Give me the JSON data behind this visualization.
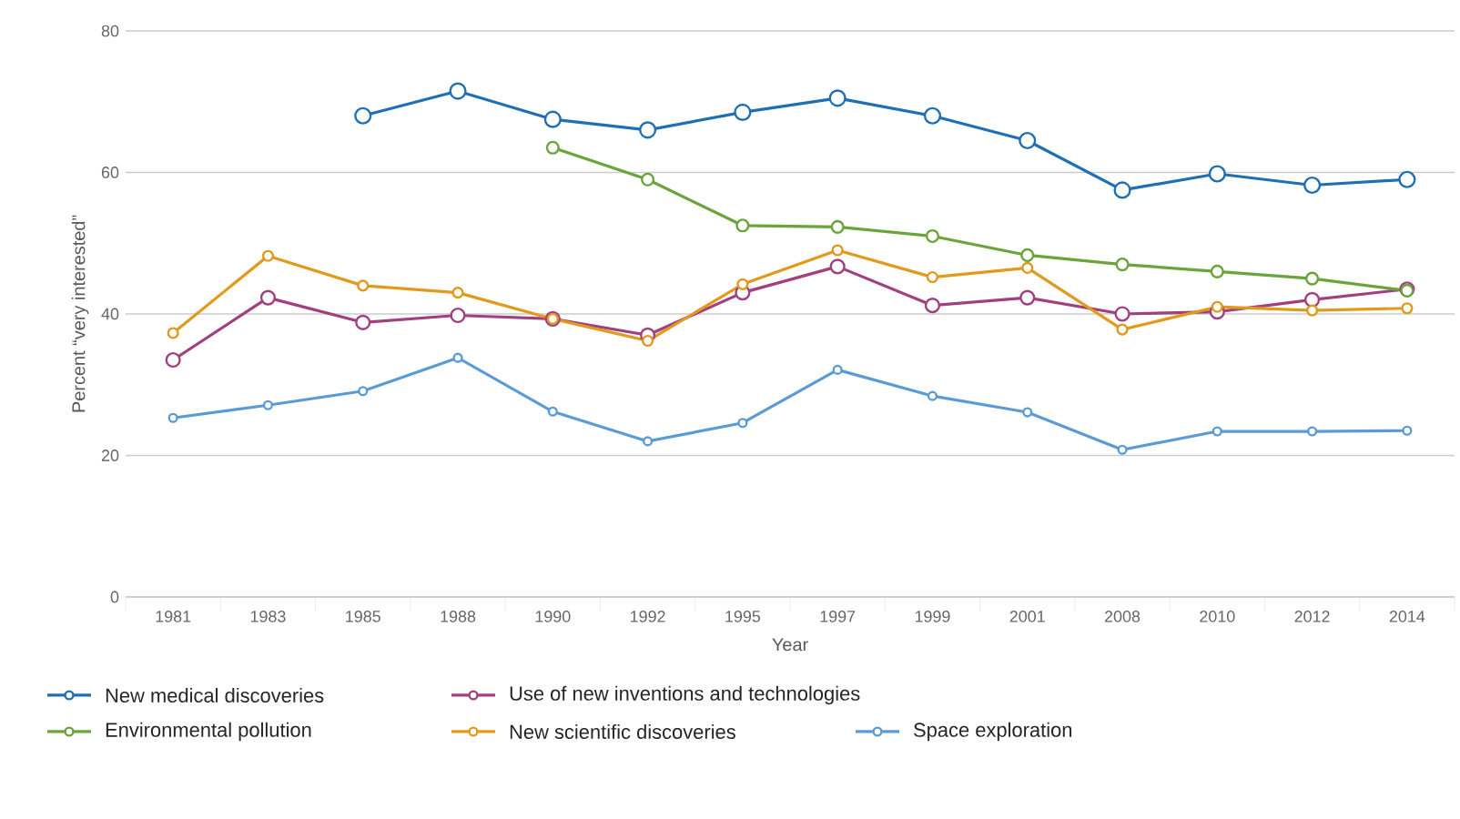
{
  "chart_data": {
    "type": "line",
    "xlabel": "Year",
    "ylabel": "Percent “very interested”",
    "categories": [
      "1981",
      "1983",
      "1985",
      "1988",
      "1990",
      "1992",
      "1995",
      "1997",
      "1999",
      "2001",
      "2008",
      "2010",
      "2012",
      "2014"
    ],
    "series": [
      {
        "name": "New medical discoveries",
        "color": "#1f6fb5",
        "values": [
          null,
          null,
          68,
          71.5,
          67.5,
          66,
          68.5,
          70.5,
          68,
          64.5,
          57.5,
          59.8,
          58.2,
          59
        ]
      },
      {
        "name": "Use of new inventions and technologies",
        "color": "#a2407f",
        "values": [
          33.5,
          42.3,
          38.8,
          39.8,
          39.3,
          37,
          43,
          46.7,
          41.2,
          42.3,
          40,
          40.3,
          42,
          43.5
        ]
      },
      {
        "name": "Environmental pollution",
        "color": "#6aa43a",
        "values": [
          null,
          null,
          null,
          null,
          63.5,
          59,
          52.5,
          52.3,
          51,
          48.3,
          47,
          46,
          45,
          43.3
        ]
      },
      {
        "name": "New scientific discoveries",
        "color": "#e09a1c",
        "values": [
          37.3,
          48.2,
          44,
          43,
          39.3,
          36.2,
          44.2,
          49,
          45.2,
          46.5,
          37.8,
          41,
          40.5,
          40.8
        ]
      },
      {
        "name": "Space exploration",
        "color": "#5b9bd5",
        "values": [
          25.3,
          27.1,
          29.1,
          33.8,
          26.2,
          22,
          24.6,
          32.1,
          28.4,
          26.1,
          20.8,
          23.4,
          23.4,
          23.5
        ]
      }
    ],
    "ylim": [
      0,
      80
    ],
    "yticks": [
      0,
      20,
      40,
      60,
      80
    ],
    "grid": "y",
    "legend": "bottom",
    "marker": "circle"
  }
}
